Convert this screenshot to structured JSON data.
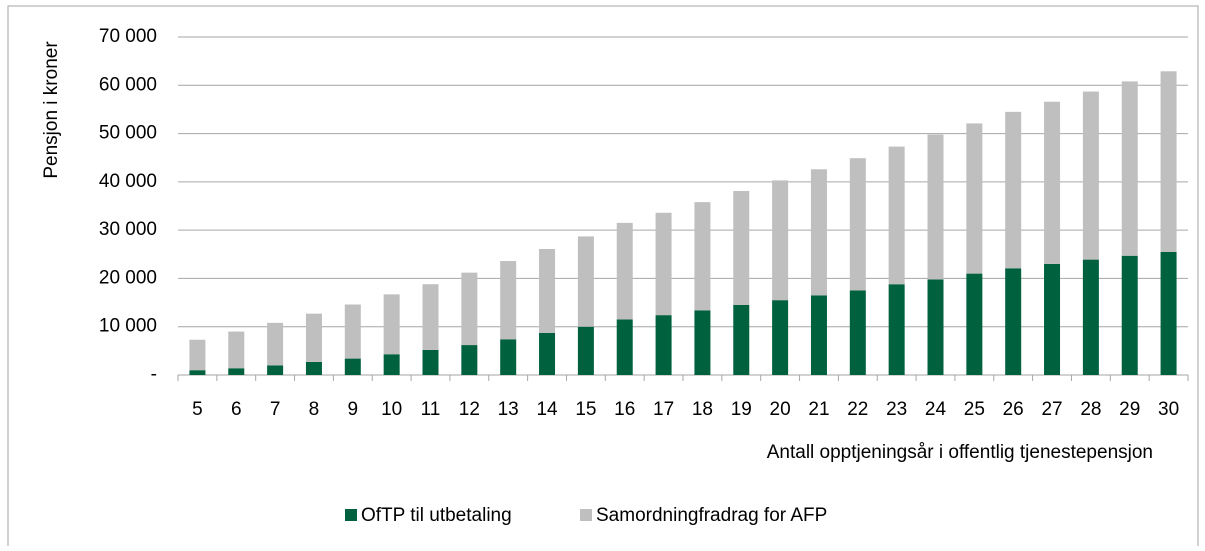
{
  "chart_data": {
    "type": "stacked_bar",
    "ylabel": "Pensjon i kroner",
    "xlabel": "Antall opptjeningsår i offentlig tjenestepensjon",
    "categories": [
      "5",
      "6",
      "7",
      "8",
      "9",
      "10",
      "11",
      "12",
      "13",
      "14",
      "15",
      "16",
      "17",
      "18",
      "19",
      "20",
      "21",
      "22",
      "23",
      "24",
      "25",
      "26",
      "27",
      "28",
      "29",
      "30"
    ],
    "series": [
      {
        "name": "OfTP til utbetaling",
        "color": "#00613e",
        "values": [
          1000,
          1400,
          2000,
          2700,
          3400,
          4300,
          5200,
          6200,
          7400,
          8700,
          10000,
          11500,
          12400,
          13400,
          14500,
          15500,
          16500,
          17500,
          18800,
          19800,
          21000,
          22100,
          23000,
          23900,
          24700,
          25500
        ]
      },
      {
        "name": "Samordningfradrag for AFP",
        "color": "#bfbfbf",
        "values": [
          6300,
          7600,
          8800,
          10000,
          11200,
          12400,
          13600,
          15000,
          16200,
          17400,
          18700,
          20000,
          21200,
          22400,
          23600,
          24800,
          26100,
          27400,
          28500,
          30000,
          31100,
          32400,
          33600,
          34800,
          36100,
          37400
        ]
      }
    ],
    "ylim": [
      0,
      70000
    ],
    "yticks": [
      {
        "value": 0,
        "label": "-"
      },
      {
        "value": 10000,
        "label": "10 000"
      },
      {
        "value": 20000,
        "label": "20 000"
      },
      {
        "value": 30000,
        "label": "30 000"
      },
      {
        "value": 40000,
        "label": "40 000"
      },
      {
        "value": 50000,
        "label": "50 000"
      },
      {
        "value": 60000,
        "label": "60 000"
      },
      {
        "value": 70000,
        "label": "70 000"
      }
    ],
    "grid": true,
    "legend": "bottom"
  }
}
